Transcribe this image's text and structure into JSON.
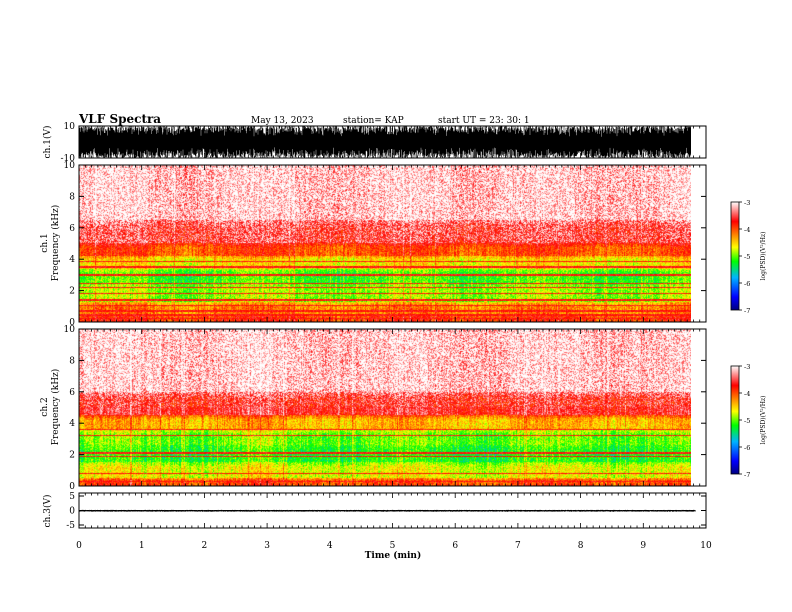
{
  "header": {
    "title": "VLF Spectra",
    "date": "May 13, 2023",
    "station": "station= KAP",
    "start": "start  UT  =   23: 30: 1"
  },
  "chart_data": [
    {
      "type": "line",
      "panel": "ch1-waveform",
      "ylabel": "ch.1(V)",
      "ylim": [
        -10,
        10
      ],
      "y_ticks": [
        "10",
        "-10"
      ],
      "x_range_min": [
        0,
        9.83
      ],
      "series_envelope_V": [
        -10,
        10
      ],
      "color": "#000000"
    },
    {
      "type": "heatmap",
      "panel": "ch1-spectrogram",
      "ylabel": "ch.1\nFrequency (kHz)",
      "ylim_khz": [
        0,
        10
      ],
      "y_ticks": [
        "0",
        "2",
        "4",
        "6",
        "8",
        "10"
      ],
      "colorbar": {
        "label": "log(PSD)(V²/Hz)",
        "range": [
          -7,
          -3
        ],
        "ticks": [
          "-3",
          "-4",
          "-5",
          "-6",
          "-7"
        ],
        "stops": [
          "#000080",
          "#0000ff",
          "#00b4ff",
          "#00ff00",
          "#ffff00",
          "#ff8000",
          "#ff0000",
          "#ffffff"
        ]
      },
      "bands": [
        {
          "f_khz": [
            0,
            0.4
          ],
          "logpsd": -3.9
        },
        {
          "f_khz": [
            0.4,
            1.3
          ],
          "logpsd": -4.2
        },
        {
          "f_khz": [
            1.3,
            2.5
          ],
          "logpsd": -4.9
        },
        {
          "f_khz": [
            2.5,
            3.4
          ],
          "logpsd": -5.1
        },
        {
          "f_khz": [
            3.4,
            4.2
          ],
          "logpsd": -4.6
        },
        {
          "f_khz": [
            4.2,
            5.0
          ],
          "logpsd": -4.0
        },
        {
          "f_khz": [
            5.0,
            6.5
          ],
          "logpsd": -3.5
        },
        {
          "f_khz": [
            6.5,
            10
          ],
          "logpsd": -3.1
        }
      ],
      "lines_khz": [
        0.2,
        0.45,
        0.7,
        1.05,
        1.4,
        1.8,
        2.2,
        2.45,
        3.0,
        3.5,
        3.85
      ]
    },
    {
      "type": "heatmap",
      "panel": "ch2-spectrogram",
      "ylabel": "ch.2\nFrequency (kHz)",
      "ylim_khz": [
        0,
        10
      ],
      "y_ticks": [
        "0",
        "2",
        "4",
        "6",
        "8",
        "10"
      ],
      "colorbar": {
        "label": "log(PSD)(V²/Hz)",
        "range": [
          -7,
          -3
        ],
        "ticks": [
          "-3",
          "-4",
          "-5",
          "-6",
          "-7"
        ],
        "stops": [
          "#000080",
          "#0000ff",
          "#00b4ff",
          "#00ff00",
          "#ffff00",
          "#ff8000",
          "#ff0000",
          "#ffffff"
        ]
      },
      "bands": [
        {
          "f_khz": [
            0,
            0.5
          ],
          "logpsd": -4.0
        },
        {
          "f_khz": [
            0.5,
            1.5
          ],
          "logpsd": -4.7
        },
        {
          "f_khz": [
            1.5,
            2.6
          ],
          "logpsd": -5.2
        },
        {
          "f_khz": [
            2.6,
            3.6
          ],
          "logpsd": -5.0
        },
        {
          "f_khz": [
            3.6,
            4.5
          ],
          "logpsd": -4.4
        },
        {
          "f_khz": [
            4.5,
            6.0
          ],
          "logpsd": -3.6
        },
        {
          "f_khz": [
            6.0,
            10
          ],
          "logpsd": -3.1
        }
      ],
      "lines_khz": [
        0.3,
        0.8,
        1.9,
        2.1,
        3.2,
        3.6
      ]
    },
    {
      "type": "line",
      "panel": "ch3-waveform",
      "ylabel": "ch.3(V)",
      "ylim": [
        -5,
        5
      ],
      "y_ticks": [
        "5",
        "0",
        "-5"
      ],
      "series_envelope_V": [
        -0.4,
        0.2
      ],
      "color": "#000000"
    }
  ],
  "x_axis": {
    "label": "Time  (min)",
    "range": [
      0,
      10
    ],
    "ticks": [
      "0",
      "1",
      "2",
      "3",
      "4",
      "5",
      "6",
      "7",
      "8",
      "9",
      "10"
    ],
    "data_end_min": 9.83
  }
}
